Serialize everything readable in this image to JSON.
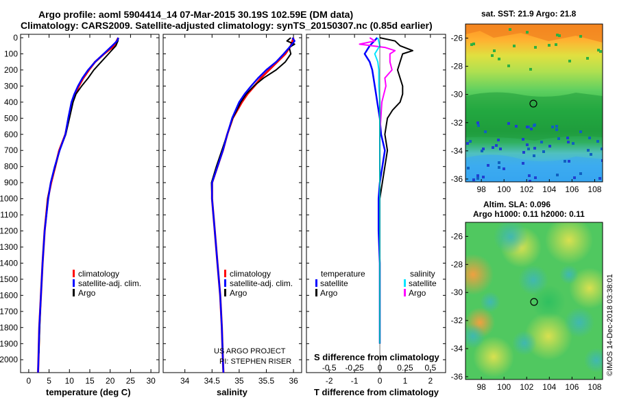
{
  "title_line1": "Argo profile: aoml 5904414_14 07-Mar-2015 30.19S 102.59E (DM data)",
  "title_line2": "Climatology: CARS2009. Satellite-adjusted climatology: synTS_20150307.nc (0.85d earlier)",
  "colors": {
    "climatology": "#ff0000",
    "satellite": "#0000ff",
    "argo": "#000000",
    "sat_salinity": "#00e5ff",
    "argo_salinity": "#ff00ff"
  },
  "chart_data": [
    {
      "type": "line",
      "name": "temperature",
      "xlabel": "temperature (deg C)",
      "ylabel": "",
      "xlim": [
        -2,
        32
      ],
      "ylim": [
        0,
        2080
      ],
      "xticks": [
        "0",
        "5",
        "10",
        "15",
        "20",
        "25",
        "30"
      ],
      "yticks": [
        "0",
        "100",
        "200",
        "300",
        "400",
        "500",
        "600",
        "700",
        "800",
        "900",
        "1000",
        "1100",
        "1200",
        "1300",
        "1400",
        "1500",
        "1600",
        "1700",
        "1800",
        "1900",
        "2000"
      ],
      "series": [
        {
          "name": "climatology",
          "depth": [
            0,
            50,
            100,
            150,
            200,
            250,
            300,
            350,
            400,
            500,
            600,
            700,
            800,
            900,
            1000,
            1200,
            1400,
            1600,
            1800,
            2000,
            2080
          ],
          "values": [
            22,
            21,
            18.5,
            16.3,
            14.8,
            13.4,
            12.3,
            11.4,
            10.7,
            9.8,
            9.0,
            7.5,
            6.5,
            5.5,
            4.7,
            3.9,
            3.4,
            3.0,
            2.6,
            2.4,
            2.3
          ]
        },
        {
          "name": "satellite-adj. clim.",
          "depth": [
            0,
            20,
            50,
            100,
            150,
            200,
            250,
            300,
            350,
            400,
            500,
            600,
            700,
            800,
            900,
            1000,
            1200,
            1400,
            1600,
            1800,
            2000,
            2080
          ],
          "values": [
            22,
            21.7,
            20.5,
            18.4,
            16.3,
            14.6,
            13.2,
            12.1,
            11.2,
            10.5,
            9.7,
            9.0,
            7.6,
            6.4,
            5.4,
            4.8,
            3.9,
            3.4,
            3.0,
            2.6,
            2.4,
            2.3
          ]
        },
        {
          "name": "Argo",
          "depth": [
            0,
            20,
            50,
            100,
            150,
            200,
            250,
            300,
            350,
            400,
            500,
            600,
            700,
            800,
            900,
            1000,
            1200,
            1400,
            1600,
            1800,
            1960
          ],
          "values": [
            22,
            21.9,
            21.4,
            19.6,
            17.8,
            16.0,
            14.6,
            13.0,
            11.6,
            10.9,
            10.0,
            9.1,
            7.6,
            6.5,
            5.4,
            4.7,
            3.9,
            3.4,
            3.0,
            2.7,
            2.5
          ]
        }
      ]
    },
    {
      "type": "line",
      "name": "salinity",
      "xlabel": "salinity",
      "ylabel": "",
      "xlim": [
        33.6,
        36.15
      ],
      "ylim": [
        0,
        2080
      ],
      "xticks": [
        "34",
        "34.5",
        "35",
        "35.5",
        "36"
      ],
      "series": [
        {
          "name": "climatology",
          "depth": [
            0,
            50,
            100,
            150,
            200,
            250,
            300,
            350,
            400,
            500,
            600,
            700,
            800,
            900,
            1000,
            1200,
            1400,
            1600,
            1800,
            2000,
            2080
          ],
          "values": [
            36.0,
            35.95,
            35.85,
            35.7,
            35.55,
            35.4,
            35.28,
            35.15,
            35.05,
            34.88,
            34.78,
            34.7,
            34.6,
            34.5,
            34.5,
            34.55,
            34.6,
            34.65,
            34.68,
            34.7,
            34.71
          ]
        },
        {
          "name": "satellite-adj. clim.",
          "depth": [
            0,
            20,
            50,
            100,
            150,
            200,
            250,
            300,
            350,
            400,
            500,
            600,
            700,
            800,
            900,
            1000,
            1200,
            1400,
            1600,
            1800,
            2000,
            2080
          ],
          "values": [
            35.98,
            36.02,
            35.95,
            35.82,
            35.68,
            35.5,
            35.35,
            35.22,
            35.1,
            35.0,
            34.87,
            34.78,
            34.7,
            34.6,
            34.5,
            34.5,
            34.55,
            34.6,
            34.65,
            34.68,
            34.7,
            34.71
          ]
        },
        {
          "name": "Argo",
          "depth": [
            0,
            20,
            40,
            60,
            100,
            150,
            200,
            250,
            300,
            350,
            400,
            500,
            600,
            700,
            800,
            900,
            1000,
            1200,
            1400,
            1600,
            1800,
            1960
          ],
          "values": [
            35.95,
            35.88,
            36.02,
            35.92,
            35.95,
            35.85,
            35.68,
            35.45,
            35.27,
            35.13,
            35.03,
            34.88,
            34.78,
            34.68,
            34.58,
            34.49,
            34.5,
            34.55,
            34.6,
            34.65,
            34.68,
            34.7
          ]
        }
      ]
    },
    {
      "type": "line",
      "name": "difference",
      "xlabel": "T difference from climatology",
      "top_label": "S difference from climatology",
      "xlim": [
        -2.9,
        2.6
      ],
      "ylim": [
        0,
        2080
      ],
      "xticks": [
        "-2",
        "-1",
        "0",
        "1",
        "2"
      ],
      "s_xticks": [
        "-0.5",
        "-0.25",
        "0",
        "0.25",
        "0.5"
      ],
      "series": [
        {
          "name": "T satellite",
          "depth": [
            0,
            50,
            100,
            150,
            200,
            300,
            400,
            500,
            600,
            700,
            800,
            900,
            1000,
            1200,
            1400,
            1600,
            1800,
            1900
          ],
          "values": [
            -0.1,
            -0.4,
            -0.6,
            -0.4,
            -0.3,
            -0.2,
            -0.1,
            0,
            0.05,
            0.2,
            0.1,
            0,
            -0.05,
            -0.05,
            0,
            0,
            0,
            0
          ]
        },
        {
          "name": "T Argo",
          "depth": [
            0,
            20,
            50,
            80,
            100,
            150,
            200,
            250,
            300,
            350,
            400,
            450,
            500,
            600,
            700,
            800,
            900,
            1000,
            1100,
            1200,
            1400,
            1600,
            1800,
            1900
          ],
          "values": [
            0,
            0.6,
            0.8,
            1.3,
            0.9,
            0.8,
            0.7,
            0.8,
            0.9,
            0.9,
            0.8,
            0.5,
            0.3,
            0.2,
            0.3,
            0.2,
            0.1,
            0,
            0,
            0,
            0,
            0,
            0,
            0
          ]
        },
        {
          "name": "S satellite",
          "depth": [
            0,
            50,
            100,
            150,
            200,
            300,
            400,
            500,
            600,
            700,
            800,
            900,
            1000,
            1200,
            1400,
            1600,
            1800,
            1900
          ],
          "values": [
            -0.02,
            0,
            -0.05,
            -0.02,
            -0.01,
            -0.01,
            0,
            0,
            0,
            0,
            0,
            0,
            0,
            0,
            0,
            0,
            0,
            0
          ]
        },
        {
          "name": "S Argo",
          "depth": [
            0,
            20,
            40,
            60,
            80,
            100,
            150,
            200,
            250,
            300,
            400,
            500,
            600,
            700,
            800,
            900,
            1000,
            1200,
            1400,
            1600,
            1800,
            1900
          ],
          "values": [
            -0.1,
            -0.05,
            -0.2,
            0.05,
            0.15,
            0.1,
            0.1,
            0.12,
            0.05,
            0.06,
            0.02,
            0.01,
            0,
            0,
            0,
            0,
            0,
            0,
            0,
            0,
            0,
            0
          ]
        }
      ]
    }
  ],
  "legend_left": [
    "climatology",
    "satellite-adj. clim.",
    "Argo"
  ],
  "legend_diff": {
    "temperature_title": "temperature",
    "salinity_title": "salinity",
    "satellite": "satellite",
    "argo": "Argo"
  },
  "credit_line1": "US ARGO PROJECT",
  "credit_line2": "PI: STEPHEN RISER",
  "map_sst": {
    "title": "sat. SST: 21.9 Argo: 21.8",
    "yticks": [
      "-26",
      "-28",
      "-30",
      "-32",
      "-34",
      "-36"
    ],
    "xticks": [
      "98",
      "100",
      "102",
      "104",
      "106",
      "108"
    ]
  },
  "map_sla": {
    "title1": "Altim. SLA: 0.096",
    "title2": "Argo h1000: 0.11 h2000: 0.11",
    "yticks": [
      "-26",
      "-28",
      "-30",
      "-32",
      "-34",
      "-36"
    ],
    "xticks": [
      "98",
      "100",
      "102",
      "104",
      "106",
      "108"
    ]
  },
  "watermark": "©IMOS 14-Dec-2018 03:38:01"
}
